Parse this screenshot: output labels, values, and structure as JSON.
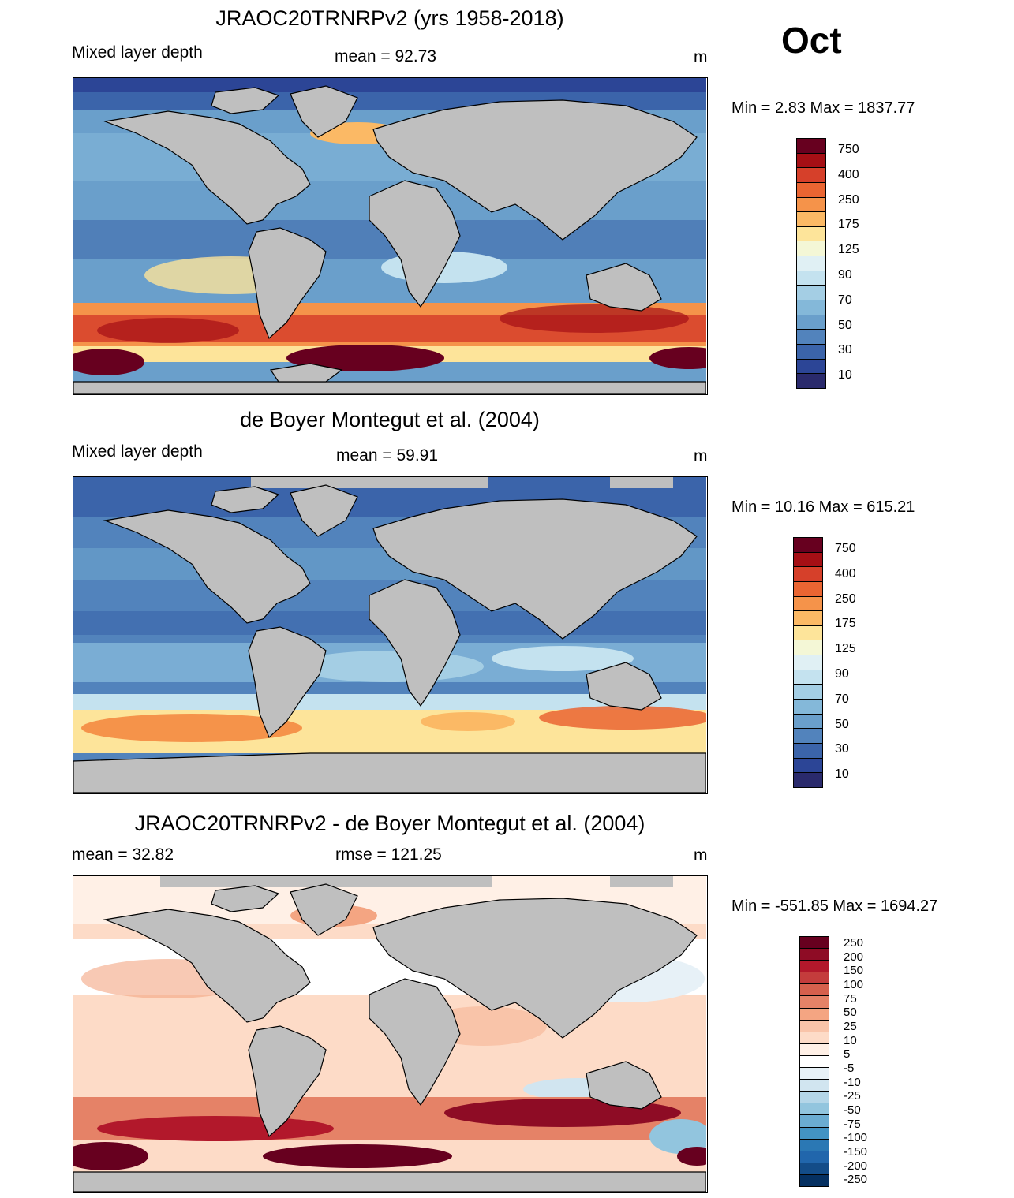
{
  "month": "Oct",
  "units": "m",
  "panels": [
    {
      "title": "JRAOC20TRNRPv2 (yrs 1958-2018)",
      "left": "Mixed layer depth",
      "center": "mean =  92.73",
      "right": "m",
      "minmax": "Min =   2.83 Max = 1837.77",
      "scale": "mld"
    },
    {
      "title": "de Boyer Montegut et al. (2004)",
      "left": "Mixed layer depth",
      "center": "mean =  59.91",
      "right": "m",
      "minmax": "Min =  10.16 Max = 615.21",
      "scale": "mld"
    },
    {
      "title": "JRAOC20TRNRPv2 - de Boyer Montegut et al. (2004)",
      "left": "mean =  32.82",
      "center": "rmse = 121.25",
      "right": "m",
      "minmax": "Min = -551.85 Max = 1694.27",
      "scale": "diff"
    }
  ],
  "colorbars": {
    "mld": {
      "labels": [
        "750",
        "400",
        "250",
        "175",
        "125",
        "90",
        "70",
        "50",
        "30",
        "10"
      ],
      "colors": [
        "#67001f",
        "#a50f15",
        "#d6402a",
        "#ea6532",
        "#f5934a",
        "#fbb965",
        "#fde49a",
        "#f4f7d6",
        "#e0f0f4",
        "#c4e2ef",
        "#a4cee4",
        "#84b8d9",
        "#6a9fcb",
        "#5283bc",
        "#3b64aa",
        "#2c4596",
        "#2a2a6c"
      ]
    },
    "diff": {
      "labels": [
        "250",
        "200",
        "150",
        "100",
        "75",
        "50",
        "25",
        "10",
        "5",
        "-5",
        "-10",
        "-25",
        "-50",
        "-75",
        "-100",
        "-150",
        "-200",
        "-250"
      ],
      "colors": [
        "#67001f",
        "#8e0c25",
        "#b2182b",
        "#c43c3c",
        "#d6604d",
        "#e58267",
        "#f4a582",
        "#f9c4a9",
        "#fddbc7",
        "#fff0e6",
        "#ffffff",
        "#e7f1f7",
        "#d1e5f0",
        "#b4d6e8",
        "#92c5de",
        "#6bacd1",
        "#4393c3",
        "#2b78b4",
        "#2166ac",
        "#134c88",
        "#053061"
      ]
    }
  },
  "map_colors": {
    "land": "#bfbfbf",
    "coast": "#000000"
  }
}
